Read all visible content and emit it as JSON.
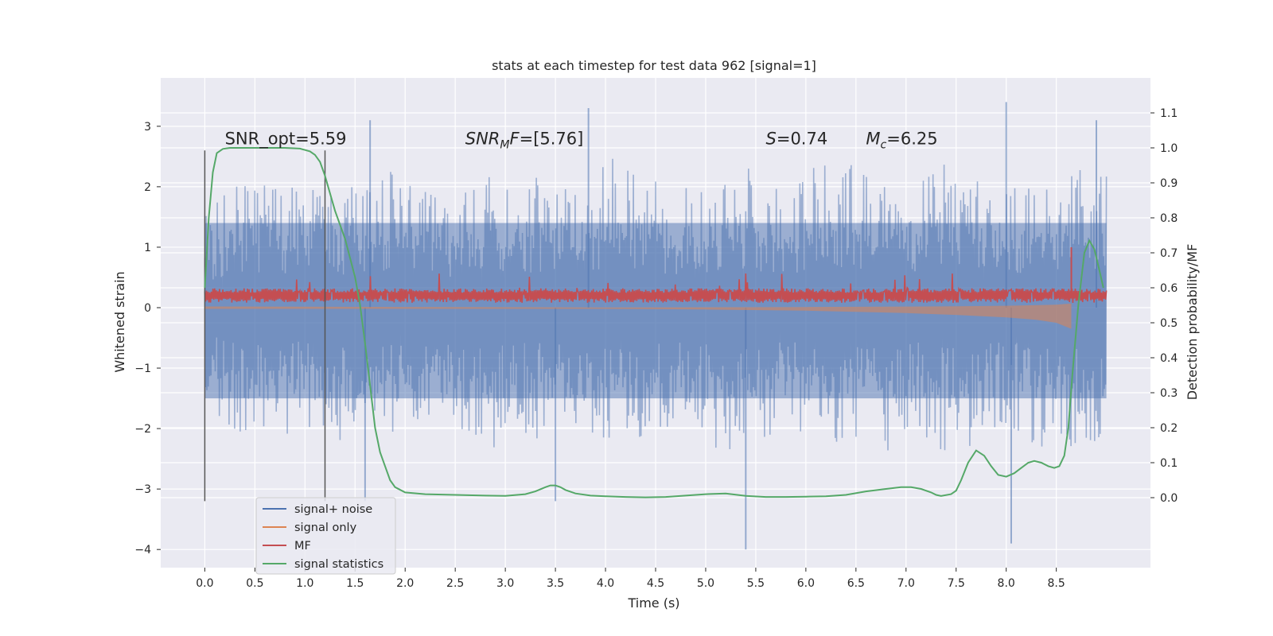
{
  "chart_data": {
    "type": "line",
    "title": "stats at each timestep for test data 962 [signal=1]",
    "xlabel": "Time (s)",
    "ylabel_left": "Whitened strain",
    "ylabel_right": "Detection probability/MF",
    "xlim": [
      -0.44,
      9.44
    ],
    "ylim_left": [
      -4.3,
      3.8
    ],
    "ylim_right": [
      -0.2,
      1.2
    ],
    "x_ticks": [
      0.0,
      0.5,
      1.0,
      1.5,
      2.0,
      2.5,
      3.0,
      3.5,
      4.0,
      4.5,
      5.0,
      5.5,
      6.0,
      6.5,
      7.0,
      7.5,
      8.0,
      8.5
    ],
    "x_tick_labels": [
      "0.0",
      "0.5",
      "1.0",
      "1.5",
      "2.0",
      "2.5",
      "3.0",
      "3.5",
      "4.0",
      "4.5",
      "5.0",
      "5.5",
      "6.0",
      "6.5",
      "7.0",
      "7.5",
      "8.0",
      "8.5"
    ],
    "y_ticks_left": [
      3,
      2,
      1,
      0,
      -1,
      -2,
      -3,
      -4
    ],
    "y_tick_labels_left": [
      "3",
      "2",
      "1",
      "0",
      "−1",
      "−2",
      "−3",
      "−4"
    ],
    "y_ticks_right": [
      1.1,
      1.0,
      0.9,
      0.8,
      0.7,
      0.6,
      0.5,
      0.4,
      0.3,
      0.2,
      0.1,
      0.0
    ],
    "y_tick_labels_right": [
      "1.1",
      "1.0",
      "0.9",
      "0.8",
      "0.7",
      "0.6",
      "0.5",
      "0.4",
      "0.3",
      "0.2",
      "0.1",
      "0.0"
    ],
    "grid": true,
    "legend_position": "lower-left",
    "annotations": [
      {
        "text": "SNR_opt=5.59",
        "x": 0.2,
        "y": 2.7
      },
      {
        "text": "SNR",
        "sub": "M",
        "rest": "F=[5.76]",
        "italic": true,
        "x": 2.6,
        "y": 2.7
      },
      {
        "text": "S",
        "rest": "=0.74",
        "italic": true,
        "x": 5.6,
        "y": 2.7
      },
      {
        "text": "M",
        "sub": "c",
        "rest": "=6.25",
        "italic": true,
        "x": 6.6,
        "y": 2.7
      }
    ],
    "vlines": [
      {
        "x": 0.0,
        "ymin": -3.2,
        "ymax": 2.6
      },
      {
        "x": 1.2,
        "ymin": -3.2,
        "ymax": 2.6
      }
    ],
    "series": [
      {
        "name": "signal+ noise",
        "axis": "left",
        "color": "#4c72b0",
        "x_range": [
          0.0,
          9.0
        ],
        "envelope_upper": [
          1.5,
          2.2,
          2.1,
          2.0,
          1.9,
          2.1,
          2.3,
          2.0,
          1.8,
          2.2,
          2.1,
          2.2,
          1.9,
          2.5,
          2.3,
          2.0,
          2.1,
          2.4,
          2.2,
          2.0,
          2.6,
          2.3,
          2.1,
          2.2,
          2.5,
          2.2,
          2.0,
          2.4,
          2.3,
          2.2
        ],
        "envelope_lower": [
          -1.6,
          -2.2,
          -2.3,
          -2.0,
          -2.1,
          -2.4,
          -2.2,
          -2.0,
          -2.3,
          -2.5,
          -2.1,
          -2.2,
          -2.0,
          -2.4,
          -2.3,
          -2.1,
          -2.2,
          -2.6,
          -2.2,
          -2.0,
          -2.3,
          -2.2,
          -2.4,
          -2.1,
          -2.5,
          -2.2,
          -2.1,
          -2.4,
          -2.3,
          -2.2
        ],
        "peaks": [
          {
            "x": 3.83,
            "y": 3.3
          },
          {
            "x": 8.0,
            "y": 3.4
          },
          {
            "x": 5.4,
            "y": -4.0
          },
          {
            "x": 8.05,
            "y": -3.9
          },
          {
            "x": 1.6,
            "y": -3.2
          },
          {
            "x": 3.5,
            "y": -3.2
          },
          {
            "x": 8.9,
            "y": 3.1
          },
          {
            "x": 1.65,
            "y": 3.1
          }
        ]
      },
      {
        "name": "signal only",
        "axis": "left",
        "color": "#dd8452",
        "x": [
          0.0,
          4.0,
          5.0,
          6.0,
          6.5,
          7.0,
          7.5,
          8.0,
          8.3,
          8.5,
          8.65
        ],
        "amplitude": [
          0.02,
          0.02,
          0.03,
          0.05,
          0.07,
          0.09,
          0.12,
          0.16,
          0.2,
          0.25,
          0.35
        ]
      },
      {
        "name": "MF",
        "axis": "left",
        "color": "#c44e52",
        "baseline": 0.2,
        "spread": 0.12,
        "x_range": [
          0.0,
          9.0
        ],
        "spike": {
          "x": 8.65,
          "y": 1.0
        }
      },
      {
        "name": "signal statistics",
        "axis": "right",
        "color": "#55a868",
        "x": [
          0.0,
          0.04,
          0.08,
          0.12,
          0.18,
          0.25,
          0.4,
          0.6,
          0.8,
          0.95,
          1.05,
          1.1,
          1.15,
          1.2,
          1.25,
          1.3,
          1.4,
          1.5,
          1.55,
          1.6,
          1.65,
          1.7,
          1.75,
          1.8,
          1.85,
          1.9,
          2.0,
          2.2,
          2.5,
          2.8,
          3.0,
          3.2,
          3.3,
          3.4,
          3.45,
          3.5,
          3.55,
          3.6,
          3.7,
          3.85,
          4.0,
          4.2,
          4.4,
          4.6,
          4.8,
          5.0,
          5.2,
          5.4,
          5.6,
          5.8,
          6.0,
          6.2,
          6.4,
          6.6,
          6.8,
          6.95,
          7.05,
          7.15,
          7.25,
          7.3,
          7.35,
          7.45,
          7.5,
          7.55,
          7.62,
          7.7,
          7.78,
          7.85,
          7.92,
          8.0,
          8.08,
          8.15,
          8.22,
          8.28,
          8.35,
          8.42,
          8.48,
          8.53,
          8.58,
          8.62,
          8.66,
          8.72,
          8.78,
          8.83,
          8.88,
          8.93,
          8.97
        ],
        "y": [
          0.6,
          0.8,
          0.93,
          0.985,
          0.997,
          1.0,
          1.0,
          1.0,
          1.0,
          0.998,
          0.99,
          0.98,
          0.96,
          0.92,
          0.87,
          0.82,
          0.74,
          0.63,
          0.55,
          0.44,
          0.32,
          0.2,
          0.13,
          0.09,
          0.05,
          0.03,
          0.015,
          0.01,
          0.008,
          0.006,
          0.005,
          0.01,
          0.018,
          0.03,
          0.035,
          0.035,
          0.03,
          0.022,
          0.012,
          0.006,
          0.004,
          0.002,
          0.001,
          0.002,
          0.006,
          0.01,
          0.012,
          0.005,
          0.002,
          0.002,
          0.003,
          0.004,
          0.008,
          0.018,
          0.025,
          0.03,
          0.03,
          0.025,
          0.015,
          0.008,
          0.005,
          0.01,
          0.02,
          0.05,
          0.1,
          0.135,
          0.12,
          0.09,
          0.065,
          0.06,
          0.07,
          0.085,
          0.1,
          0.105,
          0.1,
          0.09,
          0.085,
          0.09,
          0.12,
          0.2,
          0.35,
          0.55,
          0.7,
          0.735,
          0.71,
          0.65,
          0.6
        ]
      }
    ]
  },
  "legend": {
    "items": [
      {
        "label": "signal+ noise",
        "color": "#4c72b0"
      },
      {
        "label": "signal only",
        "color": "#dd8452"
      },
      {
        "label": "MF",
        "color": "#c44e52"
      },
      {
        "label": "signal statistics",
        "color": "#55a868"
      }
    ]
  }
}
